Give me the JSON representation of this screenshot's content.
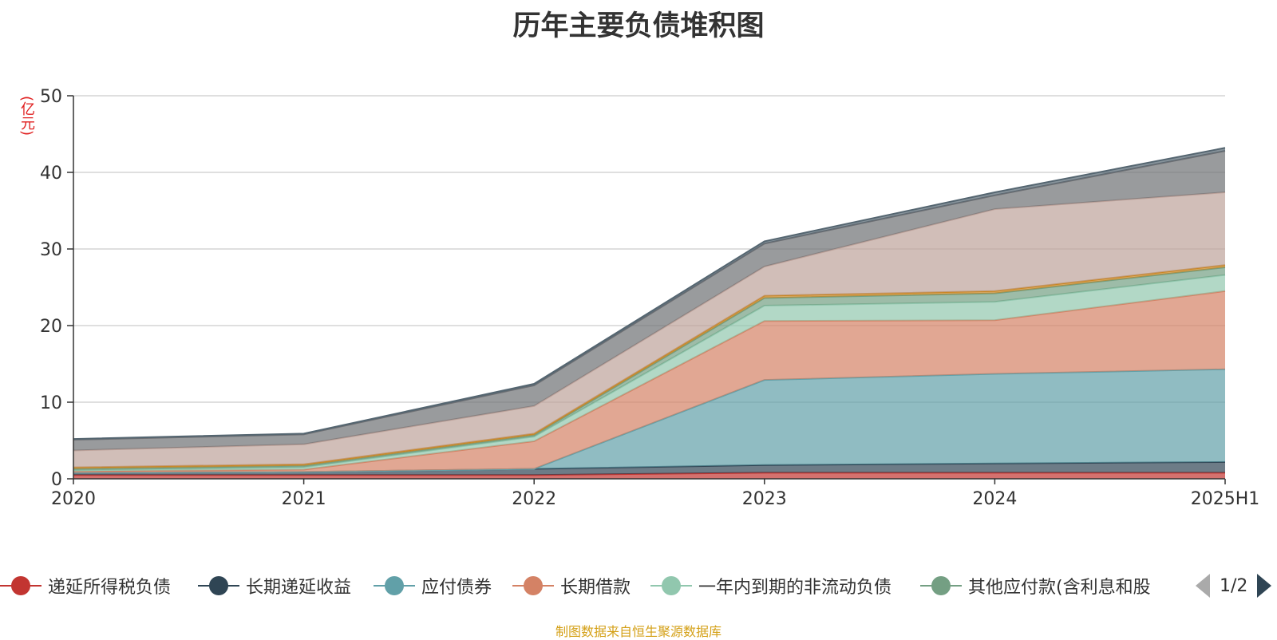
{
  "title": "历年主要负债堆积图",
  "unit": "(亿元)",
  "source": "制图数据来自恒生聚源数据库",
  "pager": {
    "text": "1/2"
  },
  "legend": [
    {
      "label": "递延所得税负债",
      "color": "#c23531"
    },
    {
      "label": "长期递延收益",
      "color": "#2f4554"
    },
    {
      "label": "应付债券",
      "color": "#61a0a8"
    },
    {
      "label": "长期借款",
      "color": "#d48265"
    },
    {
      "label": "一年内到期的非流动负债",
      "color": "#91c7ae"
    },
    {
      "label": "其他应付款(含利息和股",
      "color": "#749f83"
    }
  ],
  "chart_data": {
    "type": "area",
    "stacked": true,
    "categories": [
      "2020",
      "2021",
      "2022",
      "2023",
      "2024",
      "2025H1"
    ],
    "ylim": [
      0,
      50
    ],
    "yticks": [
      0,
      10,
      20,
      30,
      40,
      50
    ],
    "grid": true,
    "series": [
      {
        "name": "递延所得税负债",
        "color": "#c23531",
        "values": [
          0.5,
          0.5,
          0.5,
          0.8,
          0.8,
          0.8
        ]
      },
      {
        "name": "长期递延收益",
        "color": "#2f4554",
        "values": [
          0.3,
          0.4,
          0.8,
          1.0,
          1.2,
          1.4
        ]
      },
      {
        "name": "应付债券",
        "color": "#61a0a8",
        "values": [
          0,
          0,
          0,
          11.1,
          11.7,
          12.1
        ]
      },
      {
        "name": "长期借款",
        "color": "#d48265",
        "values": [
          0.2,
          0.3,
          3.6,
          7.7,
          7.0,
          10.2
        ]
      },
      {
        "name": "一年内到期的非流动负债",
        "color": "#91c7ae",
        "values": [
          0.1,
          0.3,
          0.6,
          2.0,
          2.4,
          2.1
        ]
      },
      {
        "name": "其他应付款(含利息和股",
        "color": "#749f83",
        "values": [
          0.2,
          0.2,
          0.2,
          1.0,
          1.1,
          1.0
        ]
      },
      {
        "color": "#ca8622",
        "values": [
          0.2,
          0.2,
          0.2,
          0.3,
          0.3,
          0.3
        ]
      },
      {
        "color": "#bda29a",
        "values": [
          2.2,
          2.6,
          3.6,
          3.8,
          10.7,
          9.5
        ]
      },
      {
        "color": "#6e7074",
        "values": [
          1.4,
          1.3,
          2.7,
          3.0,
          1.8,
          5.4
        ]
      },
      {
        "color": "#546570",
        "values": [
          0.1,
          0.1,
          0.2,
          0.3,
          0.4,
          0.4
        ]
      }
    ]
  }
}
